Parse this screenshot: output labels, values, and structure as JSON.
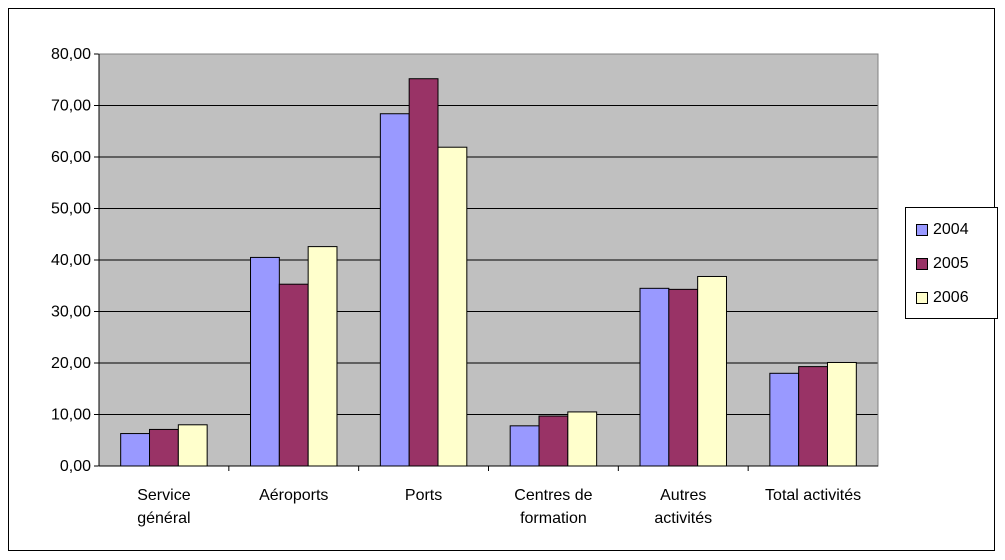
{
  "chart_data": {
    "type": "bar",
    "title": "",
    "xlabel": "",
    "ylabel": "",
    "ylim": [
      0,
      80
    ],
    "ytick_step": 10,
    "y_tick_labels": [
      "0,00",
      "10,00",
      "20,00",
      "30,00",
      "40,00",
      "50,00",
      "60,00",
      "70,00",
      "80,00"
    ],
    "grid": true,
    "plot_background": "#c0c0c0",
    "legend_position": "right",
    "categories": [
      [
        "Service",
        "général"
      ],
      [
        "Aéroports"
      ],
      [
        "Ports"
      ],
      [
        "Centres de",
        "formation"
      ],
      [
        "Autres",
        "activités"
      ],
      [
        "Total activités"
      ]
    ],
    "series": [
      {
        "name": "2004",
        "color": "#9999ff",
        "values": [
          6.3,
          40.5,
          68.4,
          7.8,
          34.5,
          18.0
        ]
      },
      {
        "name": "2005",
        "color": "#993366",
        "values": [
          7.1,
          35.3,
          75.2,
          9.7,
          34.3,
          19.3
        ]
      },
      {
        "name": "2006",
        "color": "#ffffcc",
        "values": [
          8.0,
          42.6,
          61.9,
          10.5,
          36.8,
          20.1
        ]
      }
    ]
  }
}
